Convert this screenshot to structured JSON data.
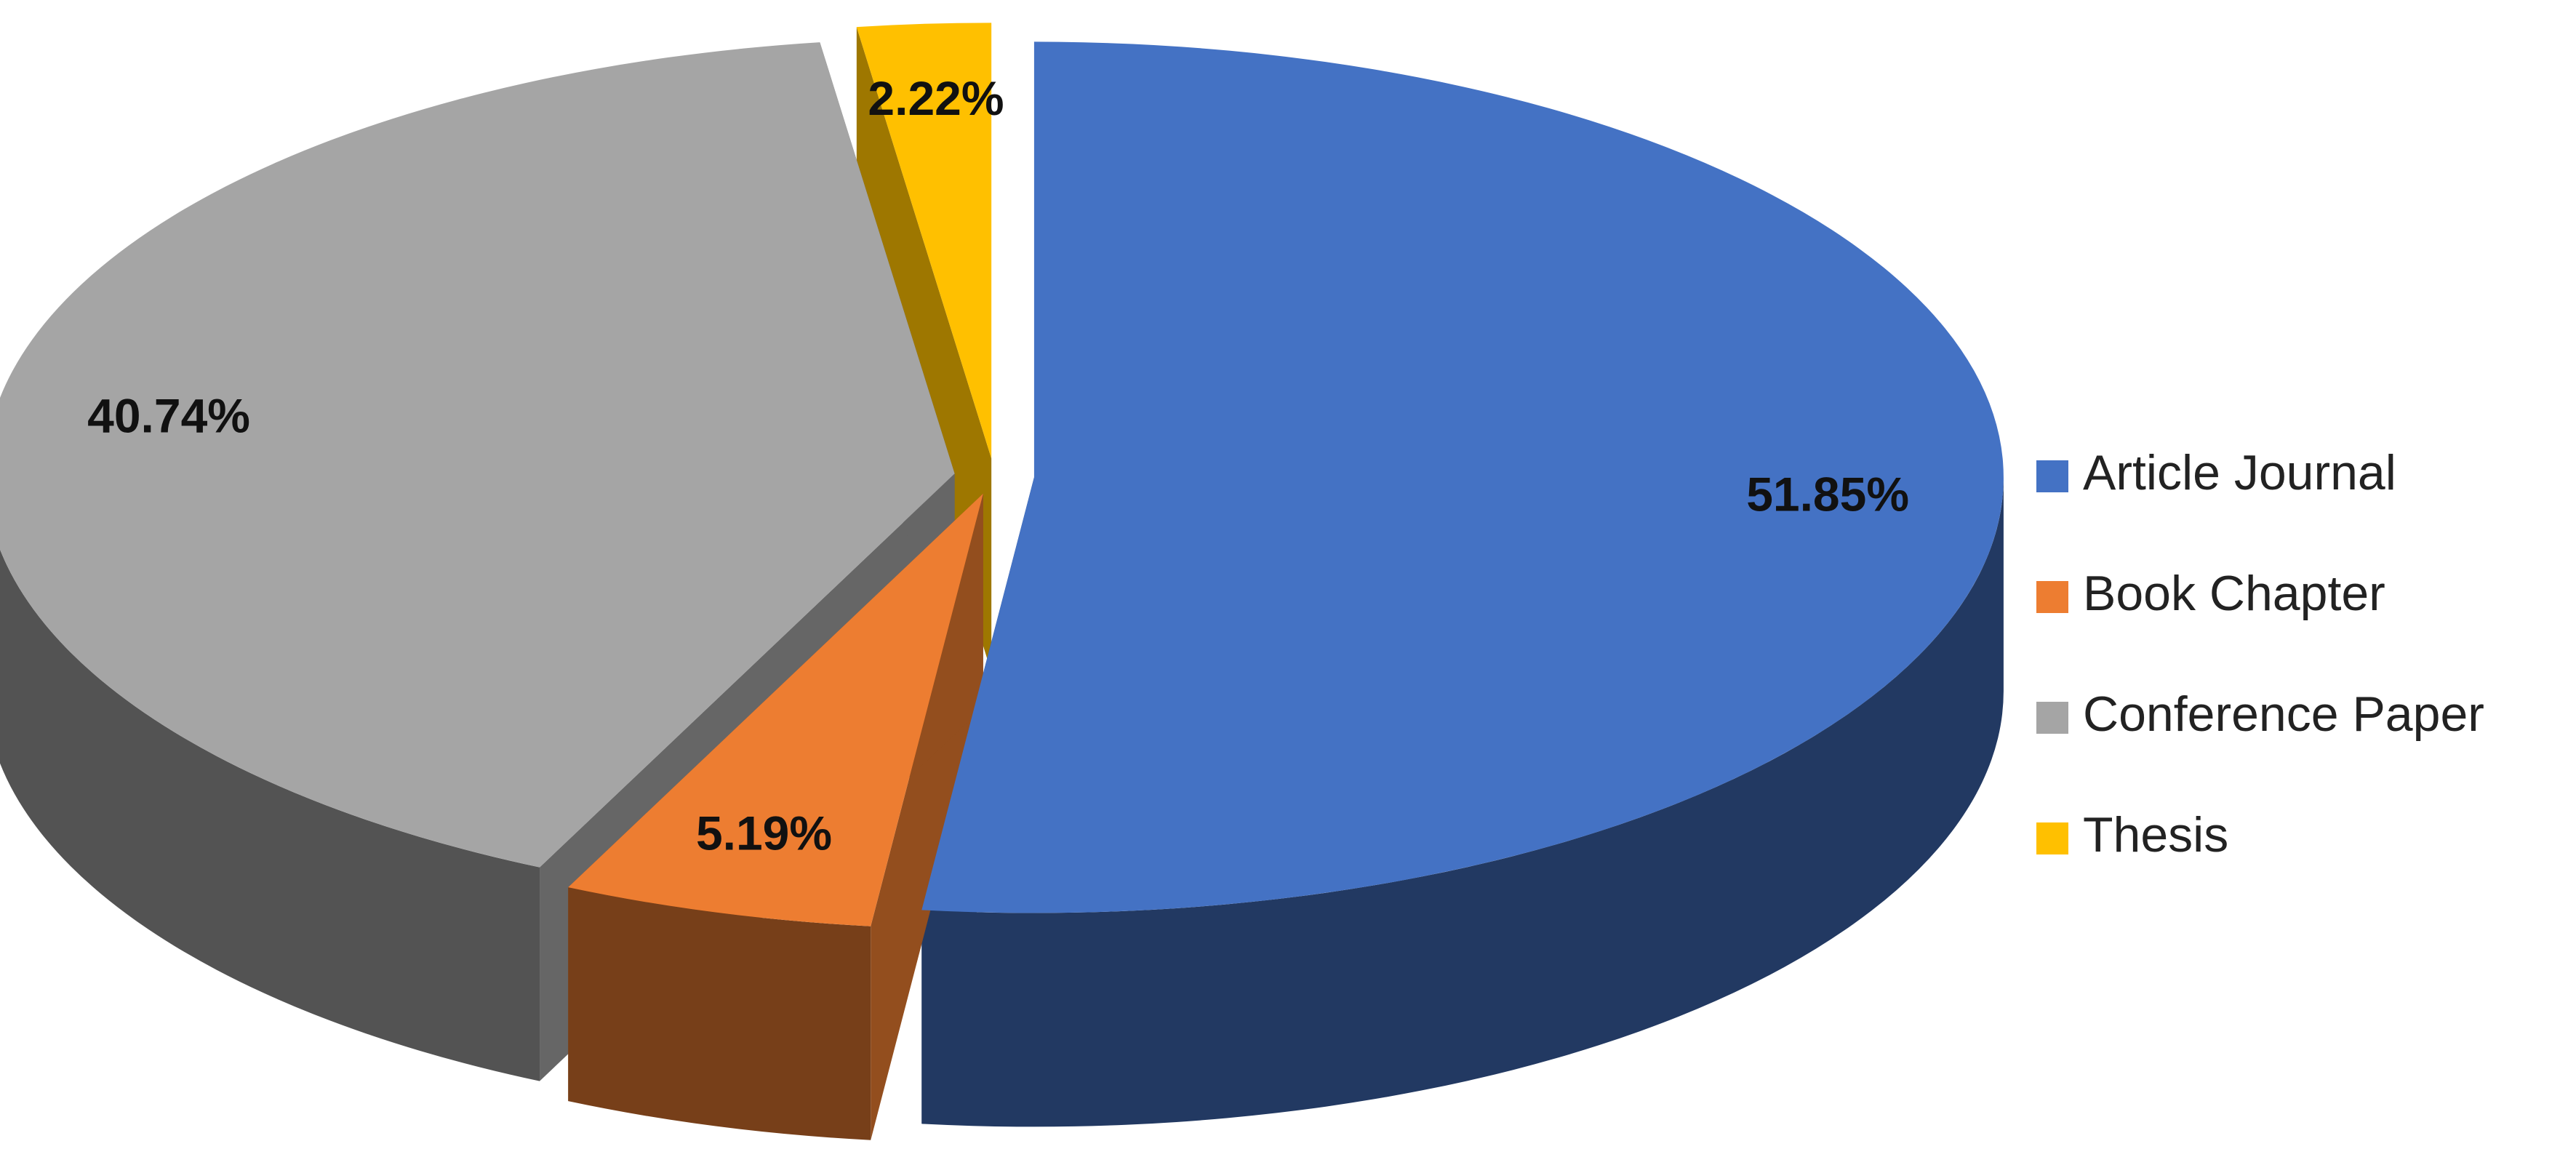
{
  "chart_data": {
    "type": "pie",
    "categories": [
      "Article Journal",
      "Book Chapter",
      "Conference Paper",
      "Thesis"
    ],
    "values": [
      51.85,
      5.19,
      40.74,
      2.22
    ],
    "value_labels": [
      "51.85%",
      "5.19%",
      "40.74%",
      "2.22%"
    ],
    "colors": [
      "#4472c4",
      "#ed7d31",
      "#a5a5a5",
      "#ffc000"
    ],
    "legend": "right"
  }
}
